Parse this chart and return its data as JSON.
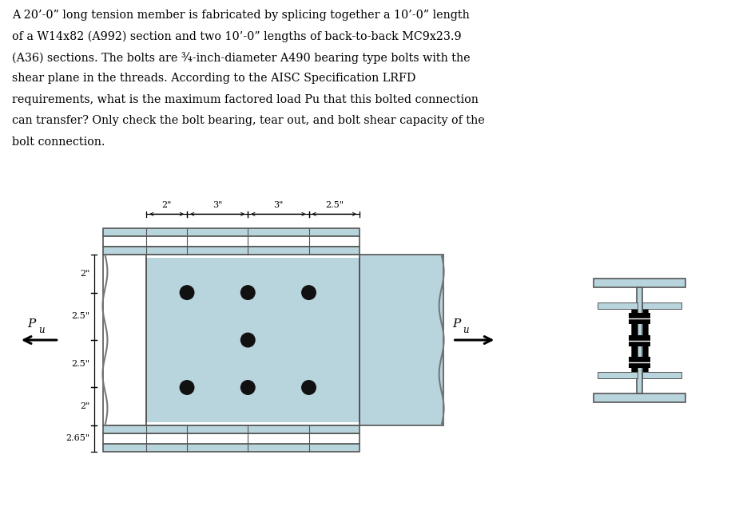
{
  "fig_width": 9.25,
  "fig_height": 6.39,
  "bg_color": "#ffffff",
  "text_color": "#000000",
  "steel_color": "#b8d4dc",
  "steel_edge": "#555555",
  "bolt_color": "#111111",
  "para_lines": [
    "A 20’-0” long tension member is fabricated by splicing together a 10’-0” length",
    "of a W14x82 (A992) section and two 10’-0” lengths of back-to-back MC9x23.9",
    "(A36) sections. The bolts are ¾-inch-diameter A490 bearing type bolts with the",
    "shear plane in the threads. According to the AISC Specification LRFD",
    "requirements, what is the maximum factored load Pu that this bolted connection",
    "can transfer? Only check the bolt bearing, tear out, and bolt shear capacity of the",
    "bolt connection."
  ],
  "dim_labels_horiz": [
    "2\"",
    "3\"",
    "3\"",
    "2.5\""
  ],
  "dim_labels_vert": [
    "2\"",
    "2.5\"",
    "2.5\"",
    "2\"",
    "2.65\""
  ]
}
